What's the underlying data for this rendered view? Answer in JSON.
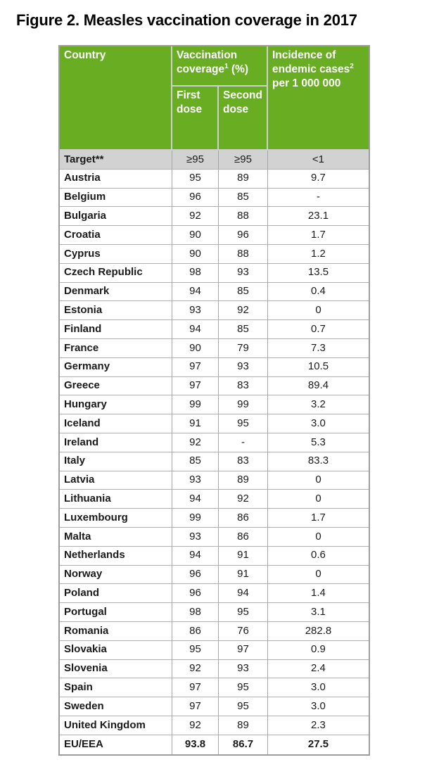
{
  "figure": {
    "title": "Figure 2. Measles vaccination coverage in 2017"
  },
  "colors": {
    "header_green": "#69ad23",
    "target_row_gray": "#d2d2d2",
    "grid_line": "#a5a5a5",
    "outer_border": "#9c9c9c",
    "header_divider": "#cfcfcf",
    "header_text": "#ffffff",
    "body_text": "#1a1a1a"
  },
  "table": {
    "header": {
      "country": "Country",
      "vaccination": {
        "line1": "Vaccination",
        "line2_pre": "coverage",
        "sup": "1",
        "line2_post": " (%)"
      },
      "first_dose": "First dose",
      "second_dose": "Second dose",
      "incidence": {
        "line1": "Incidence of",
        "line2_pre": "endemic cases",
        "sup": "2",
        "line3": "per 1 000 000"
      }
    },
    "target_row": {
      "label": "Target**",
      "first_dose": "≥95",
      "second_dose": "≥95",
      "incidence": "<1"
    },
    "rows": [
      {
        "country": "Austria",
        "first_dose": "95",
        "second_dose": "89",
        "incidence": "9.7"
      },
      {
        "country": "Belgium",
        "first_dose": "96",
        "second_dose": "85",
        "incidence": "-"
      },
      {
        "country": "Bulgaria",
        "first_dose": "92",
        "second_dose": "88",
        "incidence": "23.1"
      },
      {
        "country": "Croatia",
        "first_dose": "90",
        "second_dose": "96",
        "incidence": "1.7"
      },
      {
        "country": "Cyprus",
        "first_dose": "90",
        "second_dose": "88",
        "incidence": "1.2"
      },
      {
        "country": "Czech Republic",
        "first_dose": "98",
        "second_dose": "93",
        "incidence": "13.5"
      },
      {
        "country": "Denmark",
        "first_dose": "94",
        "second_dose": "85",
        "incidence": "0.4"
      },
      {
        "country": "Estonia",
        "first_dose": "93",
        "second_dose": "92",
        "incidence": "0"
      },
      {
        "country": "Finland",
        "first_dose": "94",
        "second_dose": "85",
        "incidence": "0.7"
      },
      {
        "country": "France",
        "first_dose": "90",
        "second_dose": "79",
        "incidence": "7.3"
      },
      {
        "country": "Germany",
        "first_dose": "97",
        "second_dose": "93",
        "incidence": "10.5"
      },
      {
        "country": "Greece",
        "first_dose": "97",
        "second_dose": "83",
        "incidence": "89.4"
      },
      {
        "country": "Hungary",
        "first_dose": "99",
        "second_dose": "99",
        "incidence": "3.2"
      },
      {
        "country": "Iceland",
        "first_dose": "91",
        "second_dose": "95",
        "incidence": "3.0"
      },
      {
        "country": "Ireland",
        "first_dose": "92",
        "second_dose": "-",
        "incidence": "5.3"
      },
      {
        "country": "Italy",
        "first_dose": "85",
        "second_dose": "83",
        "incidence": "83.3"
      },
      {
        "country": "Latvia",
        "first_dose": "93",
        "second_dose": "89",
        "incidence": "0"
      },
      {
        "country": "Lithuania",
        "first_dose": "94",
        "second_dose": "92",
        "incidence": "0"
      },
      {
        "country": "Luxembourg",
        "first_dose": "99",
        "second_dose": "86",
        "incidence": "1.7"
      },
      {
        "country": "Malta",
        "first_dose": "93",
        "second_dose": "86",
        "incidence": "0"
      },
      {
        "country": "Netherlands",
        "first_dose": "94",
        "second_dose": "91",
        "incidence": "0.6"
      },
      {
        "country": "Norway",
        "first_dose": "96",
        "second_dose": "91",
        "incidence": "0"
      },
      {
        "country": "Poland",
        "first_dose": "96",
        "second_dose": "94",
        "incidence": "1.4"
      },
      {
        "country": "Portugal",
        "first_dose": "98",
        "second_dose": "95",
        "incidence": "3.1"
      },
      {
        "country": "Romania",
        "first_dose": "86",
        "second_dose": "76",
        "incidence": "282.8"
      },
      {
        "country": "Slovakia",
        "first_dose": "95",
        "second_dose": "97",
        "incidence": "0.9"
      },
      {
        "country": "Slovenia",
        "first_dose": "92",
        "second_dose": "93",
        "incidence": "2.4"
      },
      {
        "country": "Spain",
        "first_dose": "97",
        "second_dose": "95",
        "incidence": "3.0"
      },
      {
        "country": "Sweden",
        "first_dose": "97",
        "second_dose": "95",
        "incidence": "3.0"
      },
      {
        "country": "United Kingdom",
        "first_dose": "92",
        "second_dose": "89",
        "incidence": "2.3"
      }
    ],
    "footer_row": {
      "country": "EU/EEA",
      "first_dose": "93.8",
      "second_dose": "86.7",
      "incidence": "27.5"
    }
  }
}
